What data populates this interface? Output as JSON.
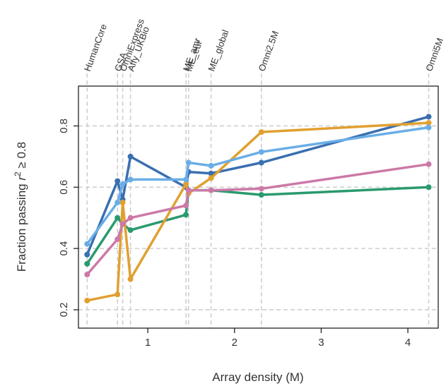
{
  "chart_data": {
    "type": "line",
    "title": "",
    "xlabel": "Array density (M)",
    "ylabel_prefix": "Fraction passing ",
    "ylabel_var": "r",
    "ylabel_exp": "2",
    "ylabel_suffix": " ≥ 0.8",
    "xlim": [
      0.2,
      4.35
    ],
    "ylim": [
      0.14,
      0.93
    ],
    "xticks": [
      1,
      2,
      3,
      4
    ],
    "yticks": [
      0.2,
      0.4,
      0.6,
      0.8
    ],
    "ytick_labels": [
      "0.2",
      "0.4",
      "0.6",
      "0.8"
    ],
    "xtick_labels": [
      "1",
      "2",
      "3",
      "4"
    ],
    "grid": "dashed vertical lines at each array density, dashed horizontal lines at y ticks",
    "legend": "none",
    "arrays": [
      {
        "label": "HumanCore",
        "x": 0.3
      },
      {
        "label": "GSA",
        "x": 0.65
      },
      {
        "label": "OmniExpress",
        "x": 0.71
      },
      {
        "label": "Affy_UKBio",
        "x": 0.8
      },
      {
        "label": "ME_amr",
        "x": 1.44
      },
      {
        "label": "ME_eur",
        "x": 1.47
      },
      {
        "label": "ME_global",
        "x": 1.73
      },
      {
        "label": "Omni2.5M",
        "x": 2.31
      },
      {
        "label": "Omni5M",
        "x": 4.24
      }
    ],
    "series": [
      {
        "color": "#3a6fb0",
        "x": [
          0.3,
          0.65,
          0.71,
          0.8,
          1.44,
          1.47,
          1.73,
          2.31,
          4.24
        ],
        "values": [
          0.38,
          0.62,
          0.56,
          0.7,
          0.6,
          0.65,
          0.645,
          0.68,
          0.83
        ]
      },
      {
        "color": "#2a9a6e",
        "x": [
          0.3,
          0.65,
          0.71,
          0.8,
          1.44,
          1.47,
          1.73,
          2.31,
          4.24
        ],
        "values": [
          0.35,
          0.5,
          0.48,
          0.46,
          0.51,
          0.59,
          0.59,
          0.575,
          0.6
        ]
      },
      {
        "color": "#e0a030",
        "x": [
          0.3,
          0.65,
          0.71,
          0.8,
          1.44,
          1.47,
          1.73,
          2.31,
          4.24
        ],
        "values": [
          0.23,
          0.25,
          0.55,
          0.3,
          0.61,
          0.58,
          0.63,
          0.78,
          0.81
        ]
      },
      {
        "color": "#cc79a7",
        "x": [
          0.3,
          0.65,
          0.71,
          0.8,
          1.44,
          1.47,
          1.73,
          2.31,
          4.24
        ],
        "values": [
          0.315,
          0.43,
          0.48,
          0.5,
          0.54,
          0.59,
          0.59,
          0.595,
          0.675
        ]
      },
      {
        "color": "#6aaee6",
        "x": [
          0.3,
          0.65,
          0.71,
          0.8,
          1.44,
          1.47,
          1.73,
          2.31,
          4.24
        ],
        "values": [
          0.415,
          0.55,
          0.61,
          0.625,
          0.625,
          0.68,
          0.67,
          0.715,
          0.795
        ]
      }
    ]
  }
}
